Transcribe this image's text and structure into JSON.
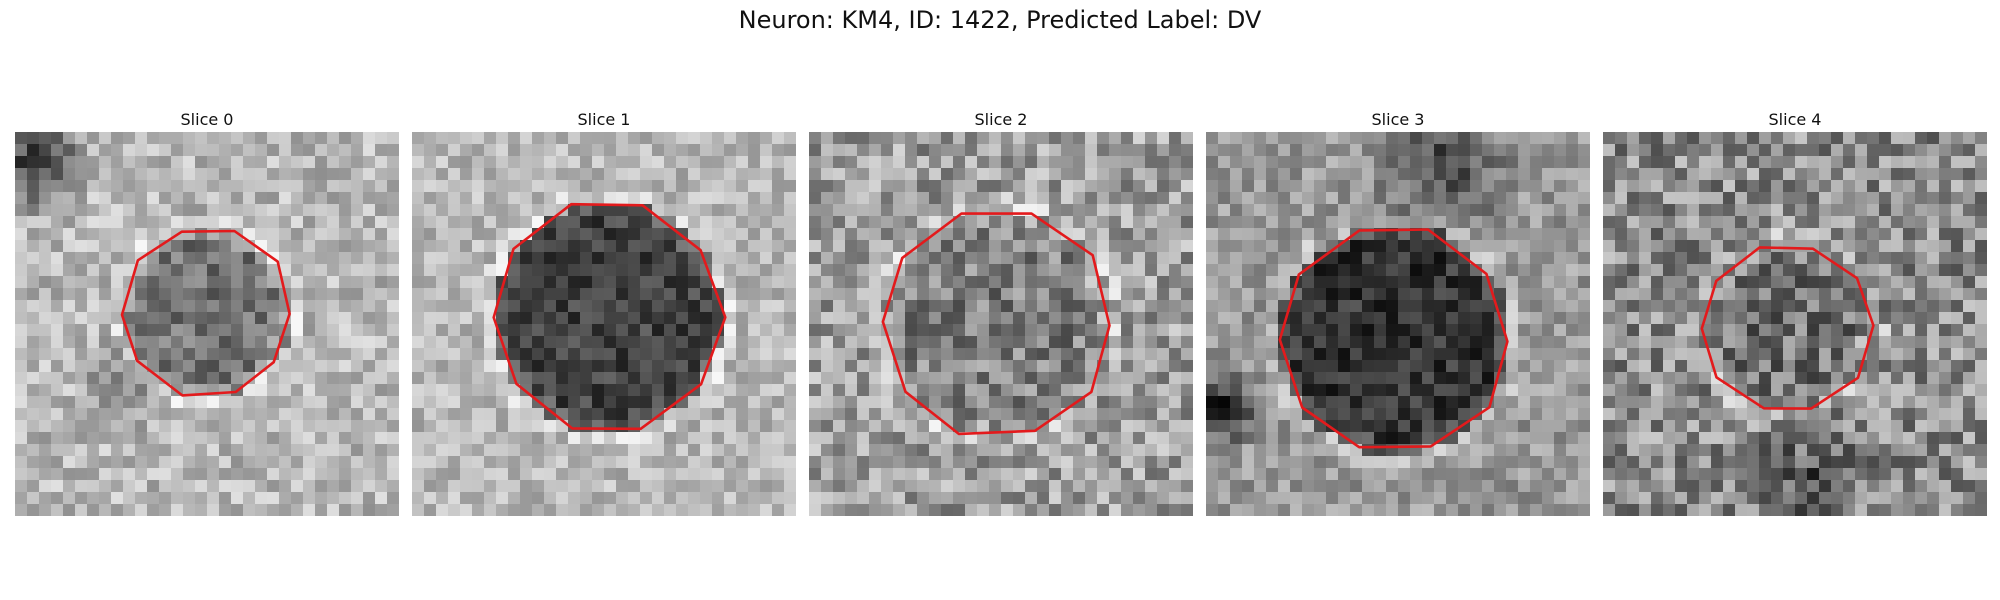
{
  "figure": {
    "title": "Neuron: KM4, ID: 1422, Predicted Label: DV"
  },
  "panels": [
    {
      "title": "Slice 0"
    },
    {
      "title": "Slice 1"
    },
    {
      "title": "Slice 2"
    },
    {
      "title": "Slice 3"
    },
    {
      "title": "Slice 4"
    }
  ],
  "colors": {
    "contour": "#e31a1c",
    "background": "#ffffff"
  }
}
